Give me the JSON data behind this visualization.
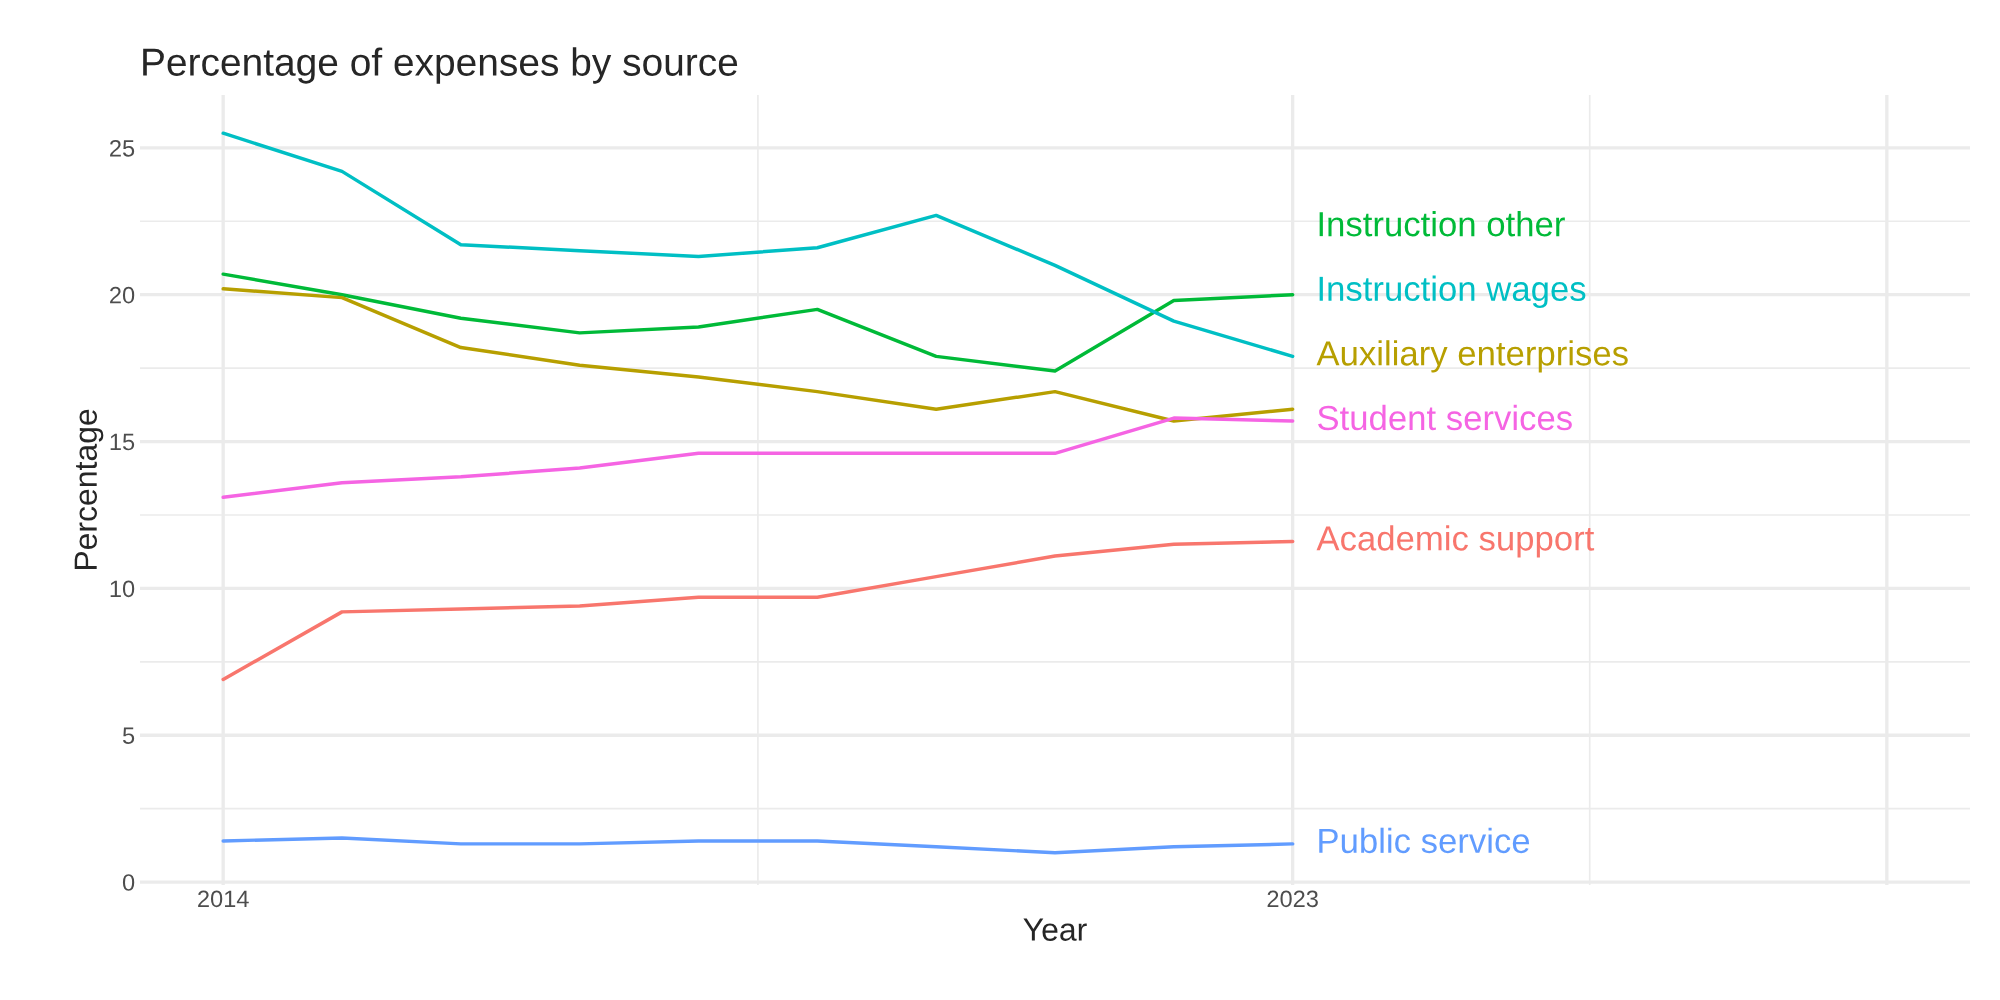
{
  "chart_data": {
    "type": "line",
    "title": "Percentage of expenses by source",
    "xlabel": "Year",
    "ylabel": "Percentage",
    "x": [
      2014,
      2015,
      2016,
      2017,
      2018,
      2019,
      2020,
      2021,
      2022,
      2023
    ],
    "series": [
      {
        "name": "Instruction other",
        "color": "#00ba38",
        "values": [
          20.7,
          20.0,
          19.2,
          18.7,
          18.9,
          19.5,
          17.9,
          17.4,
          19.8,
          20.0
        ]
      },
      {
        "name": "Instruction wages",
        "color": "#00bfc4",
        "values": [
          25.5,
          24.2,
          21.7,
          21.5,
          21.3,
          21.6,
          22.7,
          21.0,
          19.1,
          17.9
        ]
      },
      {
        "name": "Auxiliary enterprises",
        "color": "#b79f00",
        "values": [
          20.2,
          19.9,
          18.2,
          17.6,
          17.2,
          16.7,
          16.1,
          16.7,
          15.7,
          16.1
        ]
      },
      {
        "name": "Student services",
        "color": "#f564e3",
        "values": [
          13.1,
          13.6,
          13.8,
          14.1,
          14.6,
          14.6,
          14.6,
          14.6,
          15.8,
          15.7
        ]
      },
      {
        "name": "Academic support",
        "color": "#f8766d",
        "values": [
          6.9,
          9.2,
          9.3,
          9.4,
          9.7,
          9.7,
          10.4,
          11.1,
          11.5,
          11.6
        ]
      },
      {
        "name": "Public service",
        "color": "#619cff",
        "values": [
          1.4,
          1.5,
          1.3,
          1.3,
          1.4,
          1.4,
          1.2,
          1.0,
          1.2,
          1.3
        ]
      }
    ],
    "xlim": [
      2013.3,
      2028.7
    ],
    "xticks": [
      2014,
      2023,
      {
        "value": 2028,
        "label": null
      }
    ],
    "ylim": [
      -0.1,
      26.8
    ],
    "yticks": [
      0,
      5,
      10,
      15,
      20,
      25
    ],
    "grid": true,
    "legend": false
  }
}
